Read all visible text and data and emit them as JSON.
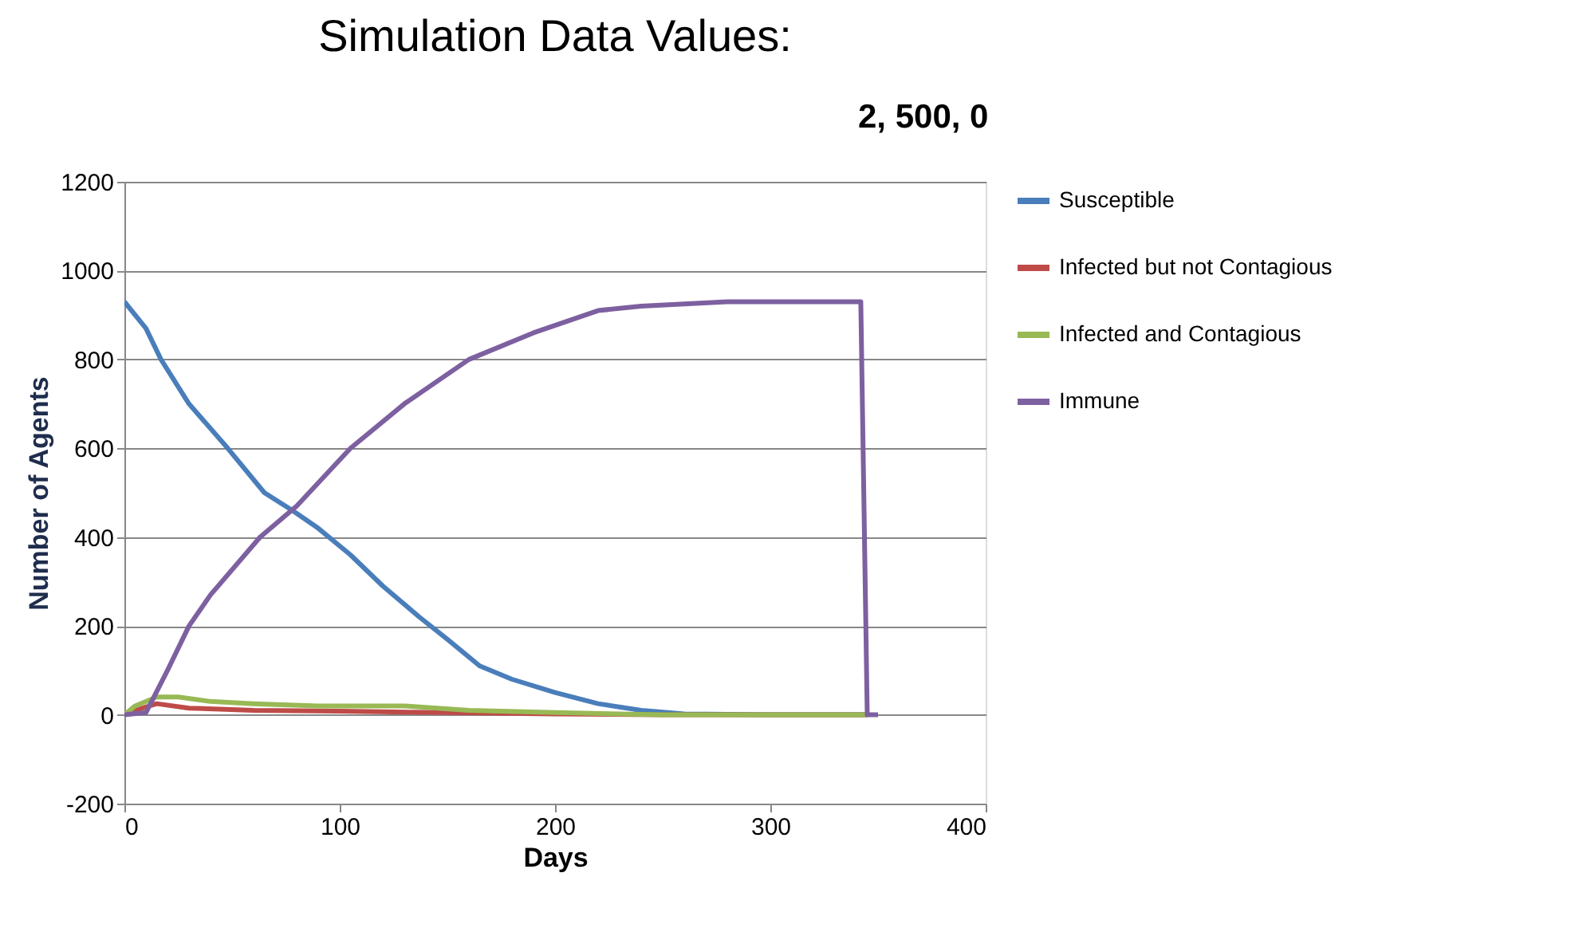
{
  "chart_data": {
    "type": "line",
    "title": "Simulation Data Values:",
    "annotations": [
      "2, 500, 0"
    ],
    "xlabel": "Days",
    "ylabel": "Number of Agents",
    "xlim": [
      0,
      400
    ],
    "xticks": [
      0,
      100,
      200,
      300,
      400
    ],
    "ylim": [
      -200,
      1200
    ],
    "yticks": [
      -200,
      0,
      200,
      400,
      600,
      800,
      1000,
      1200
    ],
    "grid": "y",
    "legend": "right",
    "line_style": "solid",
    "marker": "none",
    "series": [
      {
        "name": "Susceptible",
        "color": "#4a7ebb",
        "x": [
          0,
          10,
          17,
          30,
          48,
          65,
          78,
          90,
          105,
          120,
          137,
          150,
          165,
          180,
          200,
          220,
          240,
          260,
          300,
          345
        ],
        "values": [
          930,
          870,
          800,
          700,
          600,
          500,
          460,
          420,
          360,
          290,
          220,
          170,
          110,
          80,
          50,
          25,
          10,
          2,
          0,
          0
        ]
      },
      {
        "name": "Infected but not Contagious",
        "color": "#be4b48",
        "x": [
          0,
          5,
          15,
          30,
          60,
          100,
          150,
          200,
          250,
          345
        ],
        "values": [
          0,
          10,
          25,
          15,
          10,
          8,
          5,
          2,
          0,
          0
        ]
      },
      {
        "name": "Infected and Contagious",
        "color": "#98b954",
        "x": [
          0,
          5,
          15,
          25,
          40,
          60,
          90,
          130,
          160,
          200,
          250,
          345
        ],
        "values": [
          0,
          20,
          40,
          40,
          30,
          25,
          20,
          20,
          10,
          5,
          0,
          0
        ]
      },
      {
        "name": "Immune",
        "color": "#7d60a0",
        "x": [
          0,
          10,
          20,
          30,
          40,
          63,
          80,
          105,
          130,
          160,
          190,
          220,
          240,
          280,
          342,
          345,
          350
        ],
        "values": [
          0,
          5,
          100,
          200,
          270,
          400,
          470,
          600,
          700,
          800,
          860,
          910,
          920,
          930,
          930,
          0,
          0
        ]
      }
    ]
  }
}
